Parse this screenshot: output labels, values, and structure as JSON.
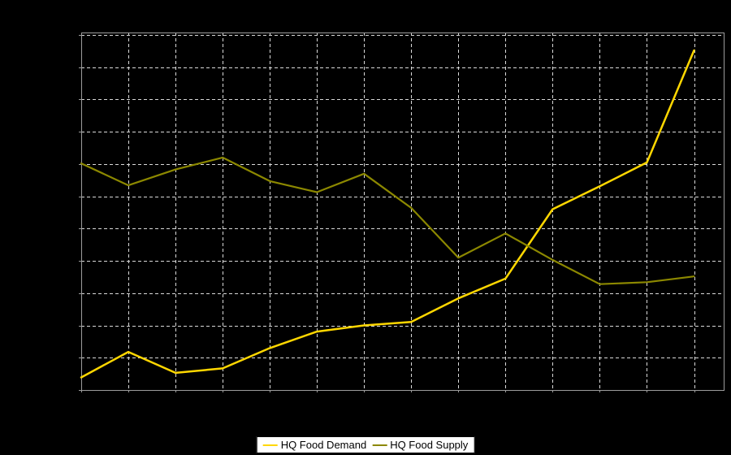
{
  "window": {
    "background": "#000000"
  },
  "chart_data": {
    "type": "line",
    "title": "",
    "x_index": [
      1,
      2,
      3,
      4,
      5,
      6,
      7,
      8,
      9,
      10,
      11,
      12,
      13,
      14
    ],
    "x_tick_labels": [],
    "y_tick_labels": [],
    "axis_tick_labels_visible": false,
    "y_unit_note": "unlabeled axis; values estimated in gridline units, bottom axis = 0, one dashed gridline = 1 unit",
    "ylim_grid_units": [
      0,
      11.08
    ],
    "x_gridlines_at_points": true,
    "series": [
      {
        "name": "HQ Food Demand",
        "color": "#ffd700",
        "values_grid_units": [
          0.39,
          1.18,
          0.53,
          0.67,
          1.3,
          1.81,
          2.0,
          2.11,
          2.84,
          3.45,
          5.6,
          6.31,
          7.05,
          10.52
        ]
      },
      {
        "name": "HQ Food Supply",
        "color": "#8c8800",
        "values_grid_units": [
          7.02,
          6.34,
          6.83,
          7.2,
          6.47,
          6.13,
          6.7,
          5.64,
          4.1,
          4.85,
          4.03,
          3.28,
          3.34,
          3.52
        ]
      }
    ],
    "grid": {
      "visible": true,
      "style": "dashed",
      "color": "#d9d9d9"
    },
    "plot_border_color": "#9c9c9c",
    "background_color": "#000000",
    "legend_position": "bottom-center"
  },
  "legend": {
    "background": "#ffffff",
    "text_color": "#000000",
    "items": [
      {
        "label": "HQ Food Demand",
        "color": "#ffd700"
      },
      {
        "label": "HQ Food Supply",
        "color": "#8c8800"
      }
    ]
  }
}
